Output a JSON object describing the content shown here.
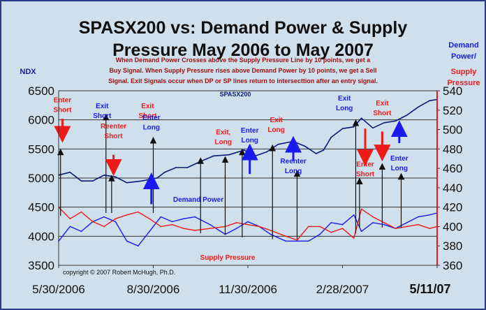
{
  "chart_data": {
    "type": "line",
    "title_line1": "SPASX200 vs: Demand Power & Supply",
    "title_line2": "Pressure May 2006 to May 2007",
    "subtitle": "When Demand Power Crosses above the Supply Pressure Line by 10 points, we get a Buy Signal.  When Supply Pressure rises above Demand Power by 10 points, we get a Sell Signal.  Exit Signals occur when DP or SP lines return to intersecttion after an entry signal.",
    "subtitle_lines": [
      "When Demand Power Crosses above the Supply Pressure Line by 10 points, we get a",
      "Buy Signal.  When Supply Pressure rises above Demand Power by 10 points, we get a Sell",
      "Signal.  Exit Signals occur when DP or SP lines return to intersecttion after an entry signal."
    ],
    "left_axis_label": "NDX",
    "right_axis_label": [
      "Demand",
      "Power/",
      "Supply",
      "Pressure"
    ],
    "left_ylim": [
      3500,
      6500
    ],
    "left_ticks": [
      "3500",
      "4000",
      "4500",
      "5000",
      "5500",
      "6000",
      "6500"
    ],
    "right_ylim": [
      360,
      540
    ],
    "right_ticks": [
      "360",
      "380",
      "400",
      "420",
      "440",
      "460",
      "480",
      "500",
      "520",
      "540"
    ],
    "x_tick_labels": [
      "5/30/2006",
      "8/30/2006",
      "11/30/2006",
      "2/28/2007",
      "5/11/07"
    ],
    "x_tick_positions": [
      0,
      0.25,
      0.5,
      0.75,
      1.0
    ],
    "grid": "horizontal",
    "copyright": "copyright © 2007 Robert McHugh, Ph.D.",
    "series_labels": {
      "index": "SPASX200",
      "demand": "Demand Power",
      "supply": "Supply Pressure"
    },
    "colors": {
      "index": "#0a1a7a",
      "demand": "#1a1aee",
      "supply": "#ee1a1a",
      "background": "#cfe0ec",
      "plot": "#cfe0ec",
      "title": "#101010",
      "subtitle": "#a01010",
      "axis_right": "#1a1aee"
    },
    "series": [
      {
        "name": "SPASX200",
        "axis": "left",
        "x": [
          0,
          0.03,
          0.06,
          0.09,
          0.12,
          0.15,
          0.18,
          0.22,
          0.26,
          0.28,
          0.31,
          0.34,
          0.38,
          0.41,
          0.45,
          0.49,
          0.52,
          0.55,
          0.58,
          0.62,
          0.65,
          0.68,
          0.7,
          0.72,
          0.75,
          0.78,
          0.8,
          0.83,
          0.86,
          0.89,
          0.92,
          0.95,
          0.98,
          1.0
        ],
        "values": [
          5050,
          5100,
          4950,
          4950,
          5050,
          5020,
          4920,
          4950,
          5000,
          5100,
          5180,
          5180,
          5300,
          5380,
          5400,
          5480,
          5380,
          5450,
          5580,
          5630,
          5550,
          5420,
          5480,
          5700,
          5850,
          5880,
          6030,
          5860,
          5950,
          5980,
          6080,
          6220,
          6330,
          6350
        ]
      },
      {
        "name": "Demand Power",
        "axis": "right",
        "x": [
          0,
          0.03,
          0.06,
          0.09,
          0.12,
          0.15,
          0.18,
          0.21,
          0.24,
          0.27,
          0.3,
          0.33,
          0.36,
          0.4,
          0.44,
          0.47,
          0.5,
          0.53,
          0.56,
          0.6,
          0.63,
          0.66,
          0.69,
          0.72,
          0.75,
          0.78,
          0.8,
          0.83,
          0.86,
          0.89,
          0.92,
          0.95,
          0.98,
          1.0
        ],
        "values": [
          385,
          400,
          395,
          405,
          410,
          405,
          385,
          380,
          395,
          410,
          405,
          408,
          410,
          402,
          392,
          398,
          405,
          400,
          392,
          385,
          385,
          385,
          392,
          404,
          402,
          412,
          395,
          404,
          402,
          398,
          404,
          410,
          412,
          414
        ]
      },
      {
        "name": "Supply Pressure",
        "axis": "right",
        "x": [
          0,
          0.03,
          0.06,
          0.09,
          0.12,
          0.15,
          0.18,
          0.21,
          0.24,
          0.27,
          0.3,
          0.33,
          0.36,
          0.4,
          0.44,
          0.47,
          0.5,
          0.53,
          0.56,
          0.6,
          0.63,
          0.66,
          0.69,
          0.72,
          0.75,
          0.78,
          0.8,
          0.83,
          0.86,
          0.89,
          0.92,
          0.95,
          0.98,
          1.0
        ],
        "values": [
          420,
          408,
          415,
          405,
          400,
          408,
          412,
          415,
          408,
          400,
          402,
          398,
          396,
          398,
          400,
          404,
          402,
          400,
          396,
          390,
          386,
          400,
          400,
          394,
          398,
          388,
          418,
          410,
          404,
          398,
          400,
          402,
          398,
          400
        ]
      }
    ],
    "annotations": [
      {
        "text": "Enter\nShort",
        "color": "#ee1a1a",
        "x": 0.01,
        "y_text": 6300,
        "arrow": "down",
        "arrow_from": 6020,
        "arrow_to": 5750
      },
      {
        "text": "Exit\nShort",
        "color": "#1a1aee",
        "x": 0.115,
        "y_text": 6200,
        "arrow": null
      },
      {
        "text": "Reenter\nShort",
        "color": "#ee1a1a",
        "x": 0.145,
        "y_text": 5850,
        "arrow": "down",
        "arrow_from": 5400,
        "arrow_to": 5180
      },
      {
        "text": "Exit\nShort",
        "color": "#ee1a1a",
        "x": 0.235,
        "y_text": 6200,
        "arrow": null
      },
      {
        "text": "Enter\nLong",
        "color": "#1a1aee",
        "x": 0.245,
        "y_text": 6000,
        "arrow": "up",
        "arrow_from": 4550,
        "arrow_to": 4950
      },
      {
        "text": "Exit,\nLong",
        "color": "#ee1a1a",
        "x": 0.435,
        "y_text": 5750,
        "arrow": null
      },
      {
        "text": "Enter\nLong",
        "color": "#1a1aee",
        "x": 0.505,
        "y_text": 5780,
        "arrow": "up",
        "arrow_from": 5070,
        "arrow_to": 5450
      },
      {
        "text": "Exit\nLong",
        "color": "#ee1a1a",
        "x": 0.575,
        "y_text": 5960,
        "arrow": null
      },
      {
        "text": "Reenter\nLong",
        "color": "#1a1aee",
        "x": 0.62,
        "y_text": 5250,
        "arrow": "up",
        "arrow_from": 5300,
        "arrow_to": 5580
      },
      {
        "text": "Exit\nLong",
        "color": "#1a1aee",
        "x": 0.755,
        "y_text": 6330,
        "arrow": null
      },
      {
        "text": "Enter\nShort",
        "color": "#ee1a1a",
        "x": 0.81,
        "y_text": 5200,
        "arrow": "down",
        "arrow_from": 5850,
        "arrow_to": 5350
      },
      {
        "text": "Exit\nShort",
        "color": "#ee1a1a",
        "x": 0.855,
        "y_text": 6250,
        "arrow": "down",
        "arrow_from": 5800,
        "arrow_to": 5430
      },
      {
        "text": "Enter\nLong",
        "color": "#1a1aee",
        "x": 0.9,
        "y_text": 5300,
        "arrow": "up",
        "arrow_from": 5600,
        "arrow_to": 5850
      }
    ],
    "black_arrows": [
      {
        "x": 0.005,
        "from": 4350,
        "to": 5450
      },
      {
        "x": 0.125,
        "from": 4400,
        "to": 6050
      },
      {
        "x": 0.14,
        "from": 4400,
        "to": 5000
      },
      {
        "x": 0.25,
        "from": 4400,
        "to": 5650
      },
      {
        "x": 0.375,
        "from": 4050,
        "to": 5300
      },
      {
        "x": 0.44,
        "from": 4030,
        "to": 5320
      },
      {
        "x": 0.485,
        "from": 3980,
        "to": 5450
      },
      {
        "x": 0.565,
        "from": 3950,
        "to": 5520
      },
      {
        "x": 0.63,
        "from": 3950,
        "to": 5080
      },
      {
        "x": 0.785,
        "from": 4050,
        "to": 5950
      },
      {
        "x": 0.795,
        "from": 4150,
        "to": 4950
      },
      {
        "x": 0.855,
        "from": 4150,
        "to": 5200
      },
      {
        "x": 0.905,
        "from": 4150,
        "to": 5030
      }
    ]
  }
}
